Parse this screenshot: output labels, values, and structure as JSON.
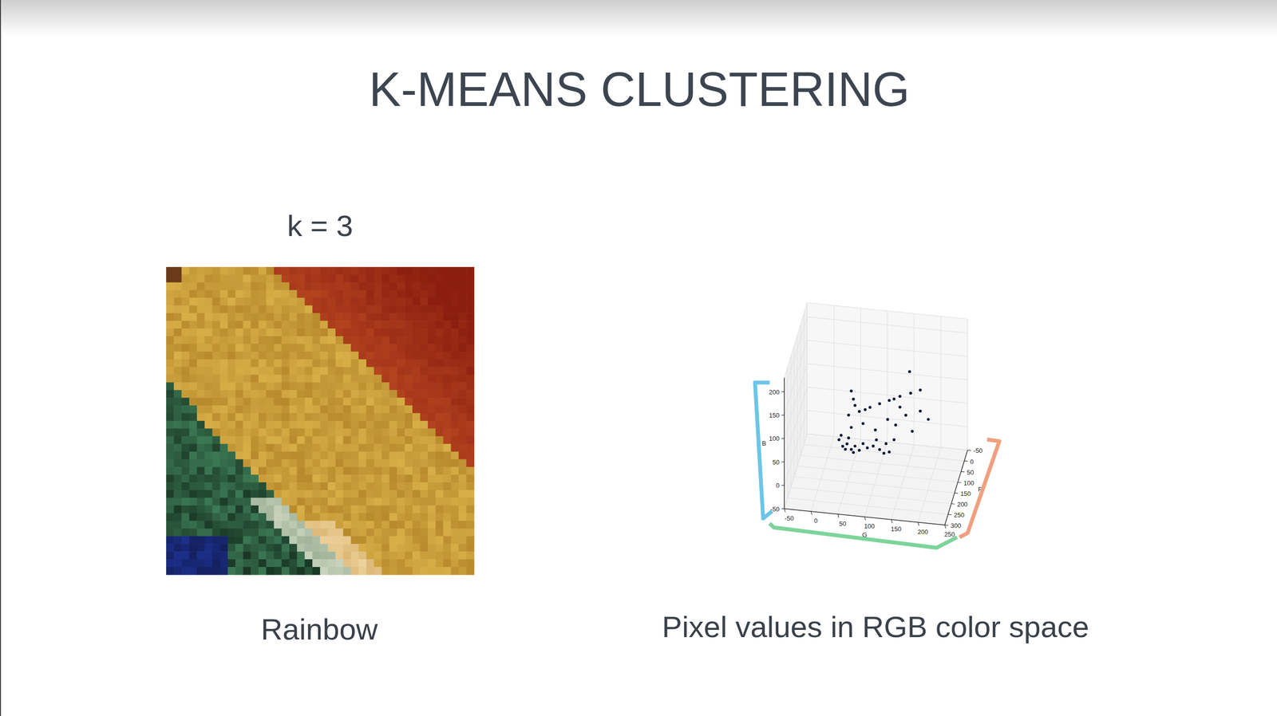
{
  "slide": {
    "title": "K-MEANS CLUSTERING",
    "image_label": "k = 3",
    "image_caption": "Rainbow",
    "chart_caption": "Pixel values in RGB color space"
  },
  "chart_data": {
    "type": "scatter3d",
    "x_label": "G",
    "y_label": "R",
    "z_label": "B",
    "xlim": [
      -50,
      250
    ],
    "ylim": [
      -50,
      300
    ],
    "zlim": [
      -50,
      230
    ],
    "xticks": [
      -50,
      0,
      50,
      100,
      150,
      200,
      250
    ],
    "yticks": [
      -50,
      0,
      50,
      100,
      150,
      200,
      250,
      300
    ],
    "zticks": [
      -50,
      0,
      50,
      100,
      150,
      200
    ],
    "grid": true,
    "color": "#0f1a3a",
    "marker": "circle",
    "x": [
      40,
      47,
      55,
      63,
      70,
      78,
      85,
      93,
      44,
      58,
      52,
      67,
      104,
      116,
      128,
      134,
      124,
      143,
      110,
      63,
      85,
      108,
      131,
      146,
      165,
      192,
      207,
      177,
      154,
      63,
      67,
      70,
      58,
      78,
      98,
      116,
      134,
      154,
      174,
      192,
      89,
      143,
      172
    ],
    "y": [
      200,
      200,
      200,
      200,
      200,
      200,
      200,
      200,
      200,
      200,
      200,
      200,
      200,
      200,
      200,
      200,
      200,
      200,
      200,
      200,
      200,
      200,
      200,
      200,
      200,
      200,
      200,
      200,
      200,
      200,
      200,
      200,
      200,
      200,
      200,
      200,
      200,
      200,
      200,
      200,
      200,
      200,
      200
    ],
    "z": [
      62,
      49,
      55,
      44,
      52,
      44,
      59,
      51,
      72,
      68,
      43,
      38,
      56,
      50,
      64,
      47,
      43,
      74,
      70,
      91,
      102,
      91,
      116,
      106,
      129,
      141,
      125,
      96,
      145,
      169,
      152,
      139,
      117,
      127,
      138,
      148,
      157,
      168,
      177,
      186,
      132,
      161,
      223
    ]
  }
}
